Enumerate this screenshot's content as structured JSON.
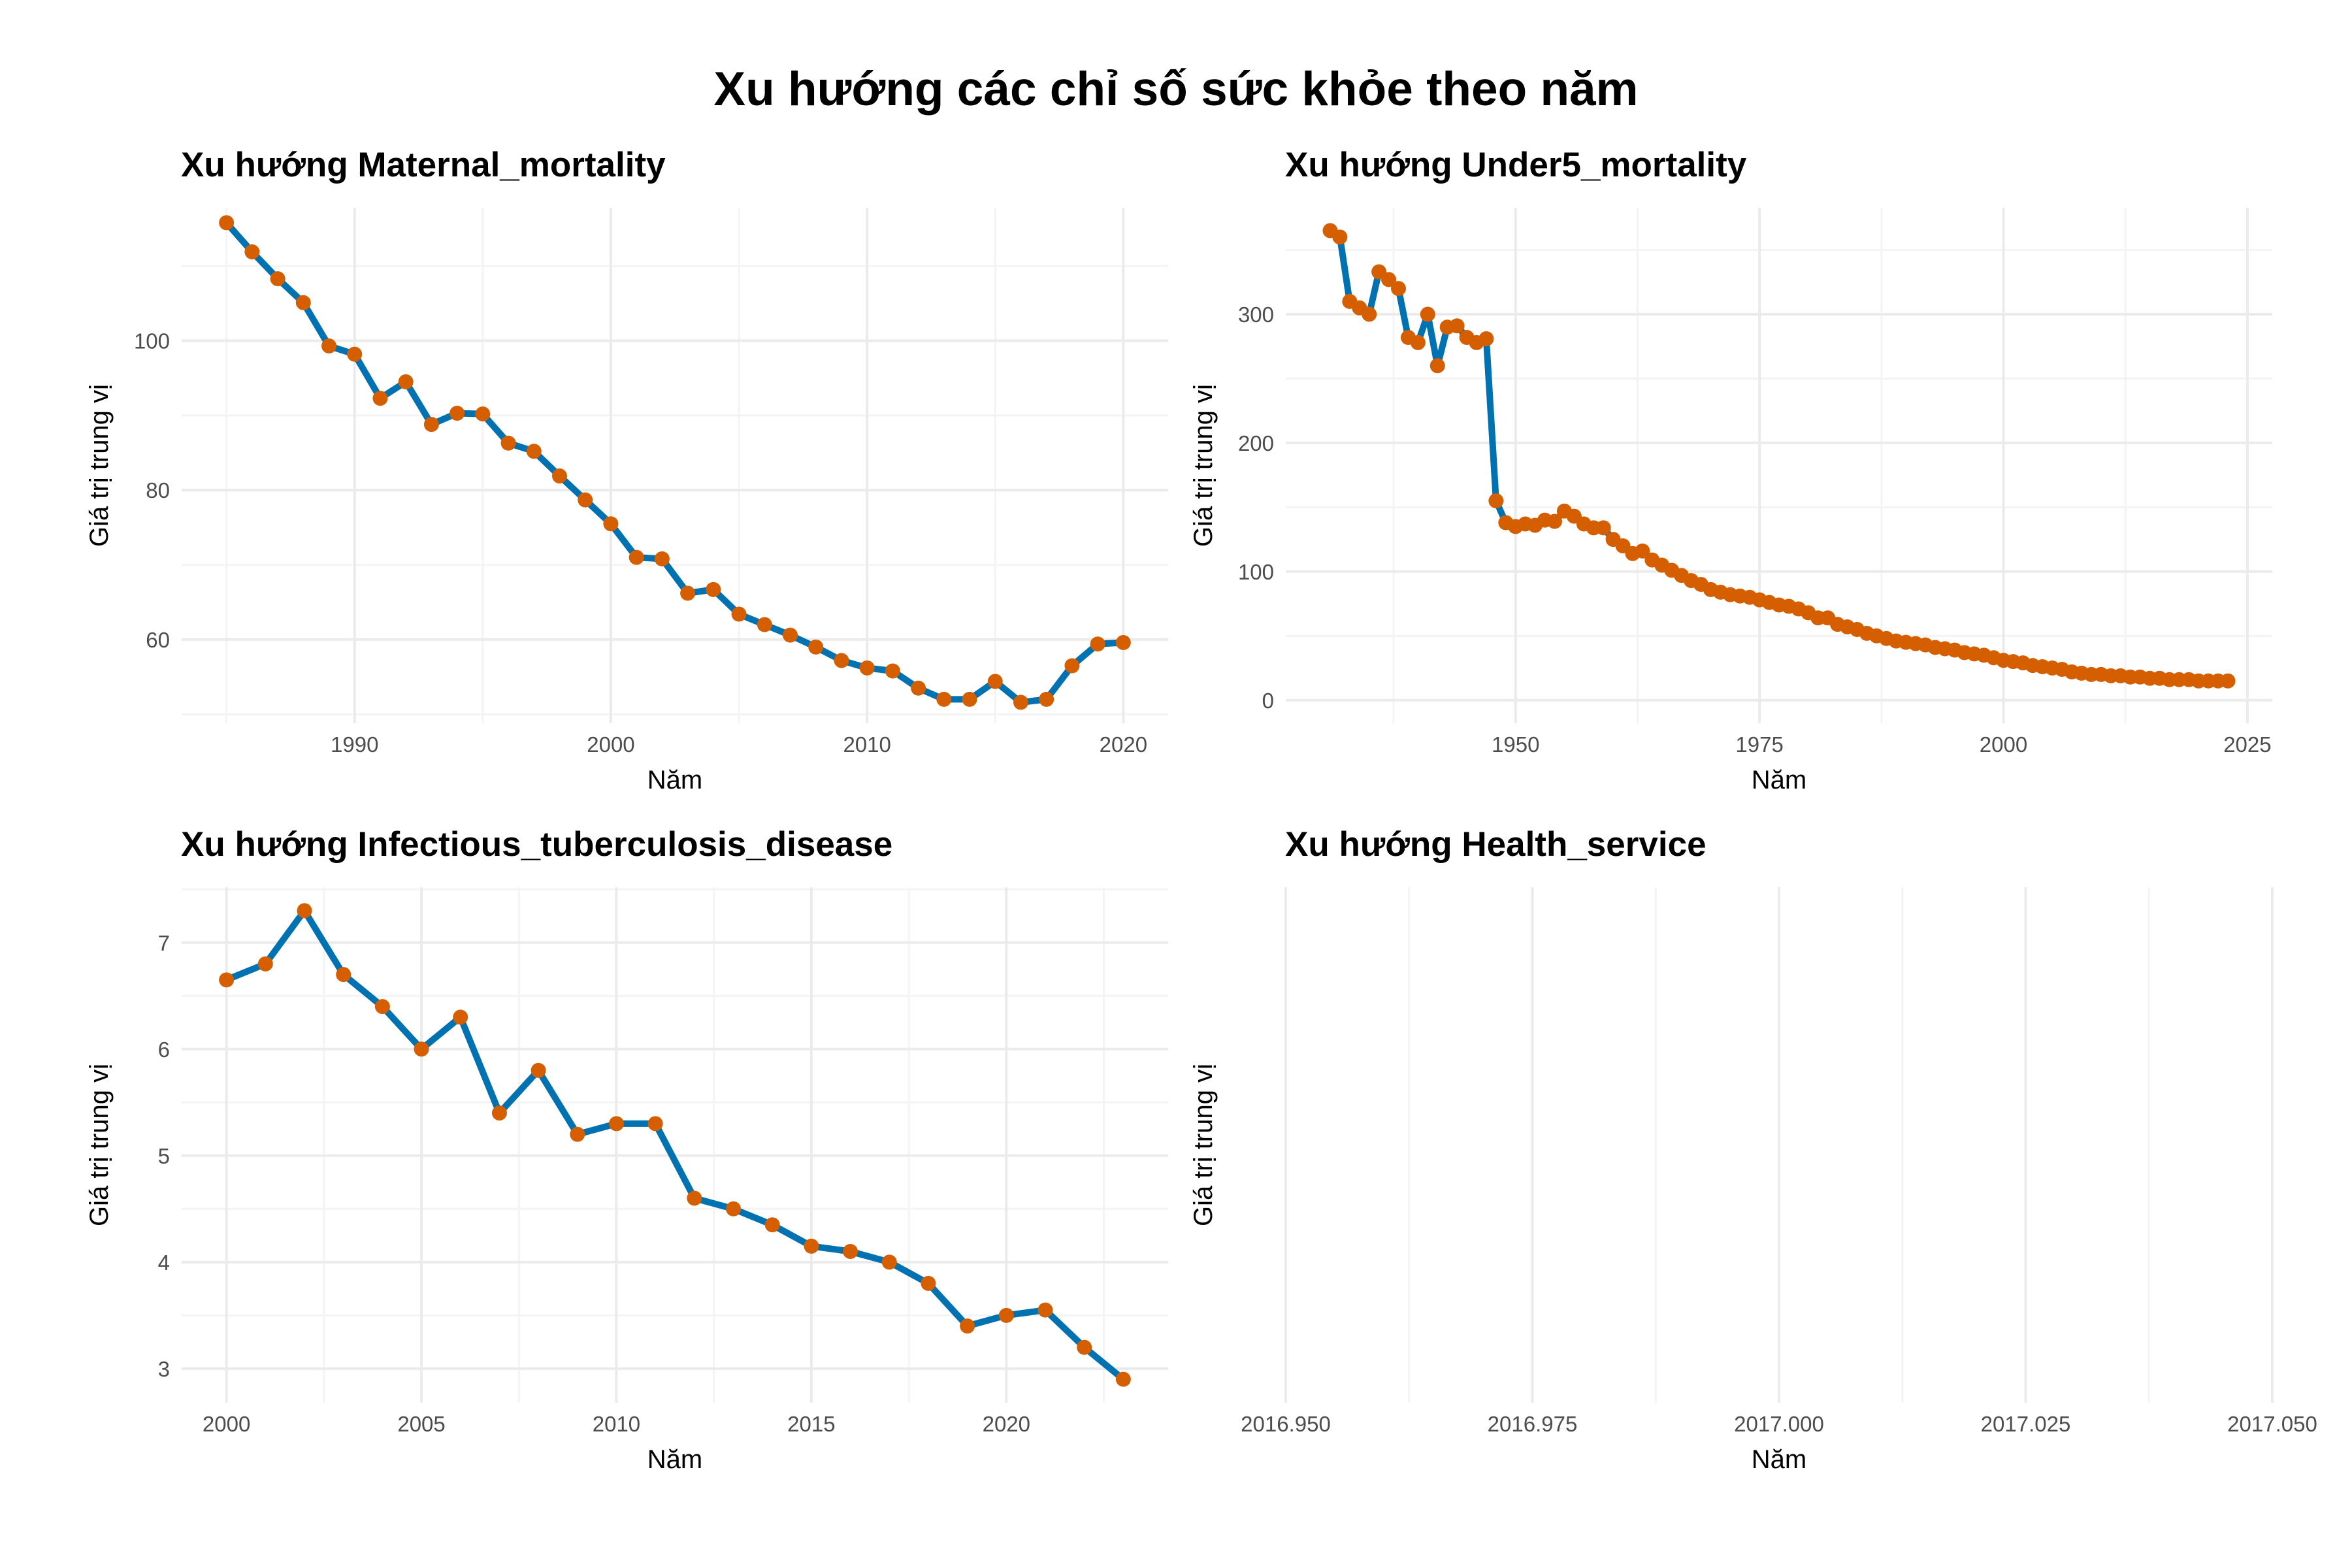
{
  "title": "Xu hướng các chỉ số sức khỏe theo năm",
  "colors": {
    "line": "#0072B2",
    "point": "#D55E00",
    "grid_major": "#EBEBEB",
    "grid_minor": "#F4F4F4"
  },
  "chart_data": [
    {
      "type": "line",
      "title": "Xu hướng Maternal_mortality",
      "xlabel": "Năm",
      "ylabel": "Giá trị trung vị",
      "xlim": [
        1983.25,
        2021.75
      ],
      "ylim": [
        48.8,
        117.8
      ],
      "xticks": [
        1990,
        2000,
        2010,
        2020
      ],
      "yticks": [
        60,
        80,
        100
      ],
      "grid": true,
      "x": [
        1985,
        1986,
        1987,
        1988,
        1989,
        1990,
        1991,
        1992,
        1993,
        1994,
        1995,
        1996,
        1997,
        1998,
        1999,
        2000,
        2001,
        2002,
        2003,
        2004,
        2005,
        2006,
        2007,
        2008,
        2009,
        2010,
        2011,
        2012,
        2013,
        2014,
        2015,
        2016,
        2017,
        2018,
        2019,
        2020
      ],
      "y": [
        115.8,
        111.9,
        108.3,
        105.1,
        99.3,
        98.2,
        92.3,
        94.5,
        88.8,
        90.3,
        90.2,
        86.3,
        85.2,
        81.9,
        78.7,
        75.5,
        71.0,
        70.8,
        66.2,
        66.7,
        63.4,
        62.0,
        60.6,
        59.0,
        57.2,
        56.2,
        55.8,
        53.5,
        52.0,
        52.0,
        54.4,
        51.6,
        52.0,
        56.5,
        59.4,
        59.6
      ]
    },
    {
      "type": "line",
      "title": "Xu hướng Under5_mortality",
      "xlabel": "Năm",
      "ylabel": "Giá trị trung vị",
      "xlim": [
        1926.45,
        2027.55
      ],
      "ylim": [
        -17.9,
        382.8
      ],
      "xticks": [
        1950,
        1975,
        2000,
        2025
      ],
      "yticks": [
        0,
        100,
        200,
        300
      ],
      "grid": true,
      "x": [
        1931,
        1932,
        1933,
        1934,
        1935,
        1936,
        1937,
        1938,
        1939,
        1940,
        1941,
        1942,
        1943,
        1944,
        1945,
        1946,
        1947,
        1948,
        1949,
        1950,
        1951,
        1952,
        1953,
        1954,
        1955,
        1956,
        1957,
        1958,
        1959,
        1960,
        1961,
        1962,
        1963,
        1964,
        1965,
        1966,
        1967,
        1968,
        1969,
        1970,
        1971,
        1972,
        1973,
        1974,
        1975,
        1976,
        1977,
        1978,
        1979,
        1980,
        1981,
        1982,
        1983,
        1984,
        1985,
        1986,
        1987,
        1988,
        1989,
        1990,
        1991,
        1992,
        1993,
        1994,
        1995,
        1996,
        1997,
        1998,
        1999,
        2000,
        2001,
        2002,
        2003,
        2004,
        2005,
        2006,
        2007,
        2008,
        2009,
        2010,
        2011,
        2012,
        2013,
        2014,
        2015,
        2016,
        2017,
        2018,
        2019,
        2020,
        2021,
        2022,
        2023
      ],
      "y": [
        365,
        360,
        310,
        305,
        300,
        333,
        327,
        320,
        282,
        278,
        300,
        260,
        290,
        291,
        282,
        278,
        281,
        155,
        138,
        135,
        137,
        136,
        140,
        139,
        147,
        143,
        137,
        134,
        134,
        125,
        120,
        114,
        116,
        109,
        105,
        101,
        97,
        93,
        90,
        86,
        84,
        82,
        81,
        80,
        78,
        76,
        74,
        73,
        71,
        68,
        64,
        64,
        59,
        57,
        55,
        52,
        50,
        48,
        46,
        45,
        44,
        43,
        41,
        40,
        39,
        37,
        36,
        35,
        33,
        31,
        30,
        29,
        27,
        26,
        25,
        24,
        22,
        21,
        20,
        20,
        19,
        19,
        18,
        18,
        17,
        17,
        16,
        16,
        16,
        15,
        15,
        15,
        15
      ]
    },
    {
      "type": "line",
      "title": "Xu hướng Infectious_tuberculosis_disease",
      "xlabel": "Năm",
      "ylabel": "Giá trị trung vị",
      "xlim": [
        1998.85,
        2024.15
      ],
      "ylim": [
        2.68,
        7.52
      ],
      "xticks": [
        2000,
        2005,
        2010,
        2015,
        2020
      ],
      "yticks": [
        3,
        4,
        5,
        6,
        7
      ],
      "grid": true,
      "x": [
        2000,
        2001,
        2002,
        2003,
        2004,
        2005,
        2006,
        2007,
        2008,
        2009,
        2010,
        2011,
        2012,
        2013,
        2014,
        2015,
        2016,
        2017,
        2018,
        2019,
        2020,
        2021,
        2022,
        2023
      ],
      "y": [
        6.65,
        6.8,
        7.3,
        6.7,
        6.4,
        6.0,
        6.3,
        5.4,
        5.8,
        5.2,
        5.3,
        5.3,
        4.6,
        4.5,
        4.35,
        4.15,
        4.1,
        4.0,
        3.8,
        3.4,
        3.5,
        3.55,
        3.2,
        2.9
      ]
    },
    {
      "type": "line",
      "title": "Xu hướng Health_service",
      "xlabel": "Năm",
      "ylabel": "Giá trị trung vị",
      "xlim": [
        2016.95,
        2017.05
      ],
      "xticks": [
        2016.95,
        2016.975,
        2017.0,
        2017.025,
        2017.05
      ],
      "xtick_labels": [
        "2016.950",
        "2016.975",
        "2017.000",
        "2017.025",
        "2017.050"
      ],
      "yticks": [],
      "grid": true,
      "x": [],
      "y": []
    }
  ]
}
